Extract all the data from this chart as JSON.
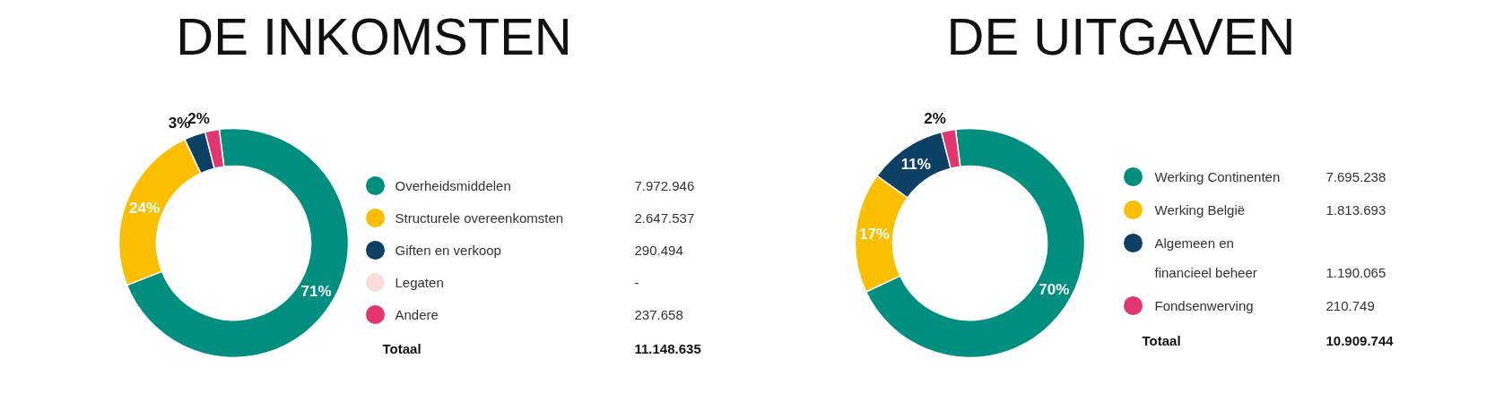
{
  "chart_data": [
    {
      "type": "donut",
      "title": "DE INKOMSTEN",
      "categories": [
        "Overheidsmiddelen",
        "Structurele overeenkomsten",
        "Giften en verkoop",
        "Legaten",
        "Andere"
      ],
      "values": [
        71,
        24,
        3,
        null,
        2
      ],
      "colors": [
        "#008f7e",
        "#fbbf00",
        "#0d4065",
        "#f9dcdc",
        "#e33572"
      ],
      "value_labels": [
        "71%",
        "24%",
        "3%",
        null,
        "2%"
      ],
      "legend": "right",
      "annotations": [
        "7.972.946",
        "2.647.537",
        "290.494",
        "-",
        "237.658",
        "Totaal",
        "11.148.635"
      ]
    },
    {
      "type": "donut",
      "title": "DE UITGAVEN",
      "categories": [
        "Werking Continenten",
        "Werking België",
        "Algemeen en financieel beheer",
        "Fondsenwerving"
      ],
      "values": [
        70,
        17,
        11,
        2
      ],
      "colors": [
        "#008f7e",
        "#fbbf00",
        "#0d4065",
        "#e33572"
      ],
      "value_labels": [
        "70%",
        "17%",
        "11%",
        "2%"
      ],
      "legend": "right",
      "annotations": [
        "7.695.238",
        "1.813.693",
        "1.190.065",
        "210.749",
        "Totaal",
        "10.909.744"
      ]
    }
  ]
}
